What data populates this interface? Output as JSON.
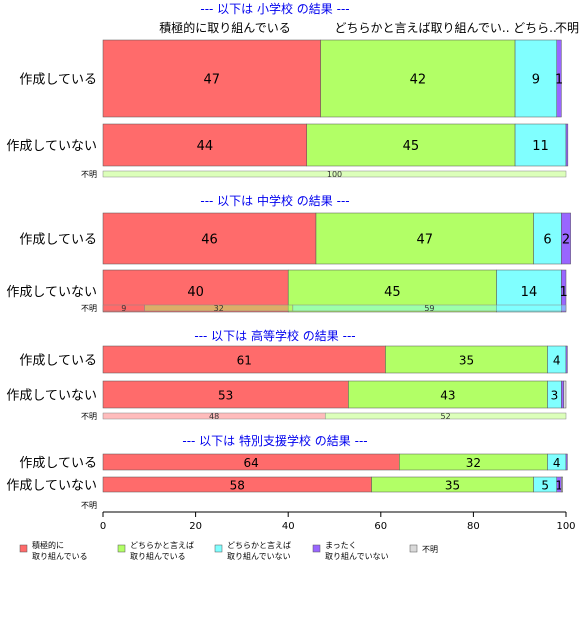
{
  "chart_data": {
    "type": "bar",
    "orientation": "horizontal",
    "stacked": true,
    "xlim": [
      0,
      100
    ],
    "x_ticks": [
      0,
      20,
      40,
      60,
      80,
      100
    ],
    "column_headers": [
      "積極的に取り組んでいる",
      "どちらかと言えば取り組んでい..",
      "どちら..",
      "不明"
    ],
    "series": [
      {
        "name": "積極的に\n取り組んでいる",
        "color": "#ff6b6b"
      },
      {
        "name": "どちらかと言えば\n取り組んでいる",
        "color": "#b2ff66"
      },
      {
        "name": "どちらかと言えば\n取り組んでいない",
        "color": "#80ffff"
      },
      {
        "name": "まったく\n取り組んでいない",
        "color": "#9966ff"
      },
      {
        "name": "不明",
        "color": "#d9d9d9"
      }
    ],
    "groups": [
      {
        "title": "--- 以下は 小学校 の結果 ---",
        "rows": [
          {
            "label": "作成している",
            "values": [
              47,
              42,
              9,
              1,
              0
            ]
          },
          {
            "label": "作成していない",
            "values": [
              44,
              45,
              11,
              0.4,
              0
            ]
          }
        ],
        "unknown": {
          "label": "不明",
          "values": [
            0,
            100,
            0,
            0,
            0
          ]
        }
      },
      {
        "title": "--- 以下は 中学校 の結果 ---",
        "rows": [
          {
            "label": "作成している",
            "values": [
              46,
              47,
              6,
              2,
              0
            ]
          },
          {
            "label": "作成していない",
            "values": [
              40,
              45,
              14,
              1,
              0
            ]
          }
        ],
        "unknown": {
          "label": "不明",
          "values": [
            9,
            32,
            59,
            0,
            0
          ]
        }
      },
      {
        "title": "--- 以下は 高等学校 の結果 ---",
        "rows": [
          {
            "label": "作成している",
            "values": [
              61,
              35,
              4,
              0.3,
              0
            ]
          },
          {
            "label": "作成していない",
            "values": [
              53,
              43,
              3,
              0.5,
              0.5
            ]
          }
        ],
        "unknown": {
          "label": "不明",
          "values": [
            48,
            52,
            0,
            0,
            0
          ]
        }
      },
      {
        "title": "--- 以下は 特別支援学校 の結果 ---",
        "rows": [
          {
            "label": "作成している",
            "values": [
              64,
              32,
              4,
              0.3,
              0
            ]
          },
          {
            "label": "作成していない",
            "values": [
              58,
              35,
              5,
              1,
              0.3
            ]
          }
        ],
        "unknown": {
          "label": "不明",
          "values": [
            0,
            0,
            0,
            0,
            0
          ]
        }
      }
    ]
  }
}
